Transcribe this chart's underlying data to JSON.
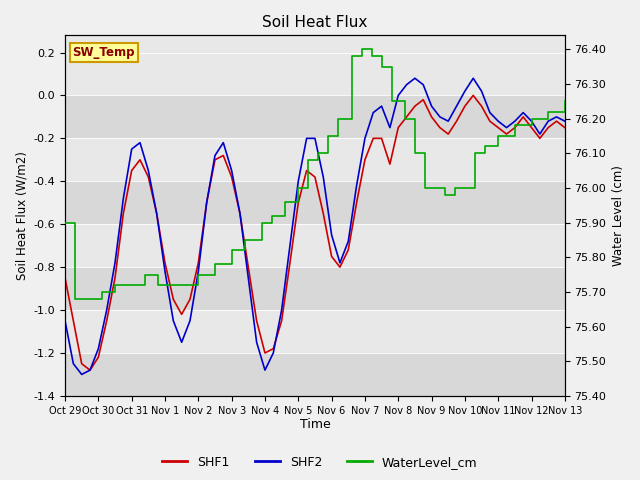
{
  "title": "Soil Heat Flux",
  "xlabel": "Time",
  "ylabel_left": "Soil Heat Flux (W/m2)",
  "ylabel_right": "Water Level (cm)",
  "ylim_left": [
    -1.4,
    0.28
  ],
  "ylim_right": [
    75.4,
    76.44
  ],
  "yticks_left": [
    -1.4,
    -1.2,
    -1.0,
    -0.8,
    -0.6,
    -0.4,
    -0.2,
    0.0,
    0.2
  ],
  "yticks_right": [
    75.4,
    75.5,
    75.6,
    75.7,
    75.8,
    75.9,
    76.0,
    76.1,
    76.2,
    76.3,
    76.4
  ],
  "xtick_labels": [
    "Oct 29",
    "Oct 30",
    "Oct 31",
    "Nov 1",
    "Nov 2",
    "Nov 3",
    "Nov 4",
    "Nov 5",
    "Nov 6",
    "Nov 7",
    "Nov 8",
    "Nov 9",
    "Nov 10",
    "Nov 11",
    "Nov 12",
    "Nov 13"
  ],
  "xtick_positions": [
    0,
    1,
    2,
    3,
    4,
    5,
    6,
    7,
    8,
    9,
    10,
    11,
    12,
    13,
    14,
    15
  ],
  "background_color": "#f0f0f0",
  "plot_bg_color": "#e8e8e8",
  "band_colors": [
    "#d8d8d8",
    "#e8e8e8"
  ],
  "shf1_color": "#cc0000",
  "shf2_color": "#0000cc",
  "water_color": "#00aa00",
  "sw_temp_label": "SW_Temp",
  "sw_temp_bg": "#ffff99",
  "sw_temp_border": "#cc9900",
  "shf1_x": [
    0,
    0.25,
    0.5,
    0.75,
    1.0,
    1.25,
    1.5,
    1.75,
    2.0,
    2.25,
    2.5,
    2.75,
    3.0,
    3.25,
    3.5,
    3.75,
    4.0,
    4.25,
    4.5,
    4.75,
    5.0,
    5.25,
    5.5,
    5.75,
    6.0,
    6.25,
    6.5,
    6.75,
    7.0,
    7.25,
    7.5,
    7.75,
    8.0,
    8.25,
    8.5,
    8.75,
    9.0,
    9.25,
    9.5,
    9.75,
    10.0,
    10.25,
    10.5,
    10.75,
    11.0,
    11.25,
    11.5,
    11.75,
    12.0,
    12.25,
    12.5,
    12.75,
    13.0,
    13.25,
    13.5,
    13.75,
    14.0,
    14.25,
    14.5,
    14.75,
    15.0
  ],
  "shf1_y": [
    -0.85,
    -1.05,
    -1.25,
    -1.28,
    -1.22,
    -1.05,
    -0.85,
    -0.55,
    -0.35,
    -0.3,
    -0.38,
    -0.55,
    -0.78,
    -0.95,
    -1.02,
    -0.95,
    -0.78,
    -0.5,
    -0.3,
    -0.28,
    -0.38,
    -0.55,
    -0.8,
    -1.05,
    -1.2,
    -1.18,
    -1.05,
    -0.78,
    -0.5,
    -0.35,
    -0.38,
    -0.55,
    -0.75,
    -0.8,
    -0.72,
    -0.5,
    -0.3,
    -0.2,
    -0.2,
    -0.32,
    -0.15,
    -0.1,
    -0.05,
    -0.02,
    -0.1,
    -0.15,
    -0.18,
    -0.12,
    -0.05,
    0.0,
    -0.05,
    -0.12,
    -0.15,
    -0.18,
    -0.15,
    -0.1,
    -0.15,
    -0.2,
    -0.15,
    -0.12,
    -0.15
  ],
  "shf2_x": [
    0,
    0.25,
    0.5,
    0.75,
    1.0,
    1.25,
    1.5,
    1.75,
    2.0,
    2.25,
    2.5,
    2.75,
    3.0,
    3.25,
    3.5,
    3.75,
    4.0,
    4.25,
    4.5,
    4.75,
    5.0,
    5.25,
    5.5,
    5.75,
    6.0,
    6.25,
    6.5,
    6.75,
    7.0,
    7.25,
    7.5,
    7.75,
    8.0,
    8.25,
    8.5,
    8.75,
    9.0,
    9.25,
    9.5,
    9.75,
    10.0,
    10.25,
    10.5,
    10.75,
    11.0,
    11.25,
    11.5,
    11.75,
    12.0,
    12.25,
    12.5,
    12.75,
    13.0,
    13.25,
    13.5,
    13.75,
    14.0,
    14.25,
    14.5,
    14.75,
    15.0
  ],
  "shf2_y": [
    -1.05,
    -1.25,
    -1.3,
    -1.28,
    -1.18,
    -1.0,
    -0.78,
    -0.48,
    -0.25,
    -0.22,
    -0.35,
    -0.55,
    -0.82,
    -1.05,
    -1.15,
    -1.05,
    -0.82,
    -0.5,
    -0.28,
    -0.22,
    -0.35,
    -0.55,
    -0.85,
    -1.15,
    -1.28,
    -1.2,
    -1.0,
    -0.7,
    -0.4,
    -0.2,
    -0.2,
    -0.38,
    -0.65,
    -0.78,
    -0.68,
    -0.42,
    -0.2,
    -0.08,
    -0.05,
    -0.15,
    0.0,
    0.05,
    0.08,
    0.05,
    -0.05,
    -0.1,
    -0.12,
    -0.05,
    0.02,
    0.08,
    0.02,
    -0.08,
    -0.12,
    -0.15,
    -0.12,
    -0.08,
    -0.12,
    -0.18,
    -0.12,
    -0.1,
    -0.12
  ],
  "water_x": [
    0,
    0.3,
    0.6,
    1.1,
    1.5,
    1.9,
    2.4,
    2.8,
    3.2,
    3.6,
    4.0,
    4.5,
    5.0,
    5.4,
    5.9,
    6.2,
    6.6,
    7.0,
    7.3,
    7.6,
    7.9,
    8.2,
    8.6,
    8.9,
    9.2,
    9.5,
    9.8,
    10.2,
    10.5,
    10.8,
    11.1,
    11.4,
    11.7,
    12.0,
    12.3,
    12.6,
    13.0,
    13.5,
    14.0,
    14.5,
    15.0
  ],
  "water_y": [
    75.9,
    75.68,
    75.68,
    75.7,
    75.72,
    75.72,
    75.75,
    75.72,
    75.72,
    75.72,
    75.75,
    75.78,
    75.82,
    75.85,
    75.9,
    75.92,
    75.96,
    76.0,
    76.08,
    76.1,
    76.15,
    76.2,
    76.38,
    76.4,
    76.38,
    76.35,
    76.25,
    76.2,
    76.1,
    76.0,
    76.0,
    75.98,
    76.0,
    76.0,
    76.1,
    76.12,
    76.15,
    76.18,
    76.2,
    76.22,
    76.25
  ],
  "xlim": [
    0,
    15
  ]
}
